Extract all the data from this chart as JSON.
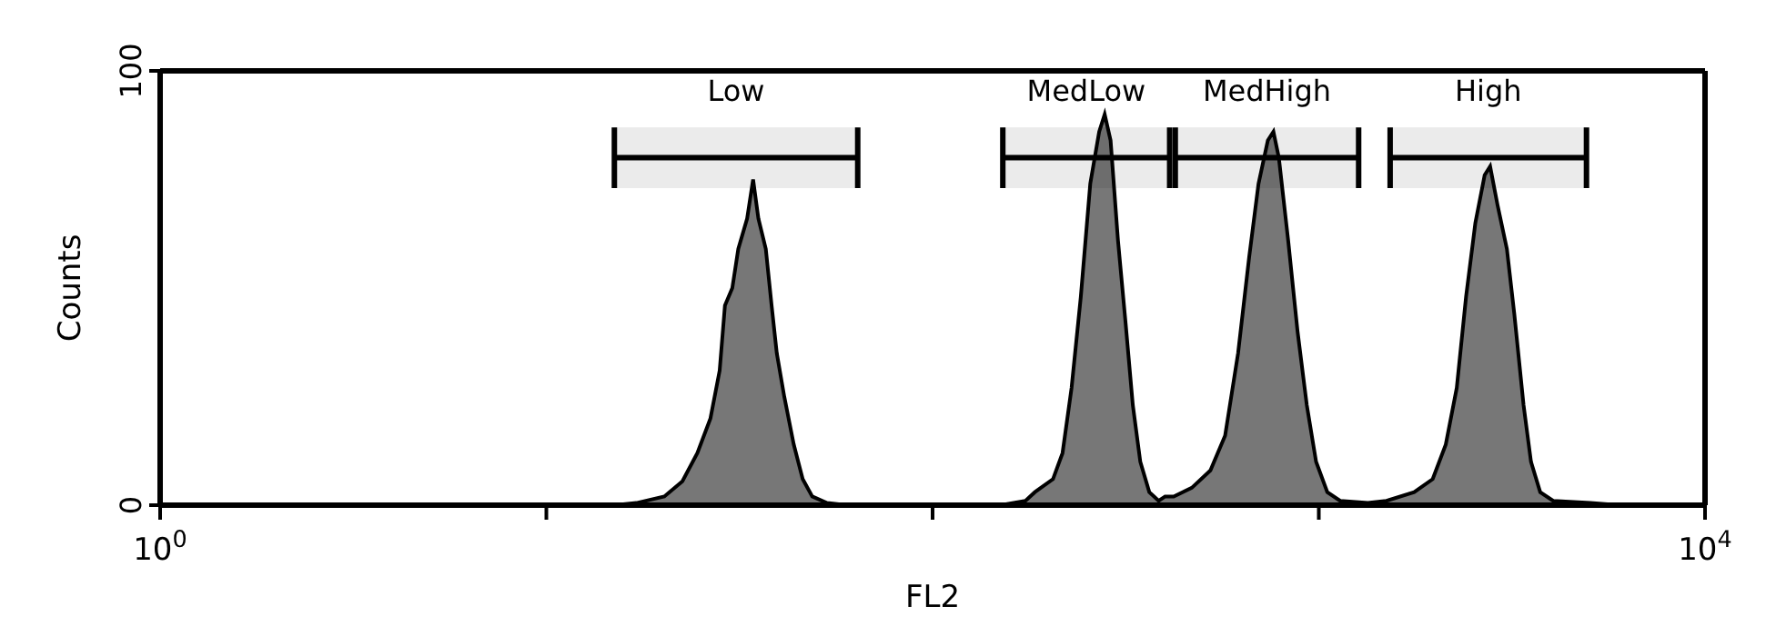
{
  "chart_data": {
    "type": "area",
    "xlabel": "FL2",
    "ylabel": "Counts",
    "series": [
      {
        "color": "#777777",
        "x": [
          1,
          10,
          15,
          17.1,
          20.2,
          22.5,
          24.6,
          26.6,
          28.1,
          29,
          30.3,
          31.4,
          33.1,
          34.3,
          35.4,
          37,
          38.3,
          39.5,
          41.3,
          43.7,
          46.1,
          48.8,
          53.3,
          60,
          150,
          174,
          184,
          205,
          217,
          229,
          242,
          256,
          270,
          279,
          289,
          302,
          316,
          330,
          345,
          364,
          385,
          400,
          421,
          469,
          524,
          572,
          618,
          660,
          698,
          738,
          763,
          788,
          833,
          881,
          931,
          984,
          1052,
          1136,
          1340,
          1496,
          1766,
          1972,
          2132,
          2276,
          2406,
          2543,
          2688,
          2777,
          2904,
          3069,
          3208,
          3390,
          3543,
          3743,
          4045,
          5045,
          6000,
          10000
        ],
        "values": [
          0,
          0,
          0,
          0.5,
          2,
          5.5,
          12,
          20,
          31,
          46,
          50,
          59,
          66,
          75,
          66,
          59,
          46,
          35,
          25,
          14,
          6,
          2,
          0.5,
          0,
          0,
          1,
          3,
          6,
          12,
          27,
          48,
          74,
          86,
          90,
          84,
          61,
          42,
          23,
          10,
          3,
          1,
          2,
          2,
          4,
          8,
          16,
          35,
          57,
          74,
          84,
          86,
          80,
          61,
          40,
          23,
          10,
          3,
          1,
          0.5,
          1,
          3,
          6,
          14,
          27,
          48,
          65,
          76,
          78,
          69,
          59,
          44,
          23,
          10,
          3,
          1,
          0.5,
          0,
          0
        ]
      }
    ],
    "xlim": [
      1,
      10000
    ],
    "xticks": [
      {
        "value": 1,
        "label": "10$^{0}$"
      },
      {
        "value": 10,
        "label": null
      },
      {
        "value": 100,
        "label": null
      },
      {
        "value": 1000,
        "label": null
      },
      {
        "value": 10000,
        "label": "10$^{4}$"
      }
    ],
    "ylim": [
      0,
      100
    ],
    "yticks": [
      0,
      100
    ],
    "log": "x",
    "grid": false,
    "bands": [
      {
        "axis": "x",
        "from": 15,
        "to": 64,
        "label": "Low"
      },
      {
        "axis": "x",
        "from": 152,
        "to": 411,
        "label": "MedLow"
      },
      {
        "axis": "x",
        "from": 425,
        "to": 1268,
        "label": "MedHigh"
      },
      {
        "axis": "x",
        "from": 1530,
        "to": 4932,
        "label": "High"
      }
    ]
  }
}
